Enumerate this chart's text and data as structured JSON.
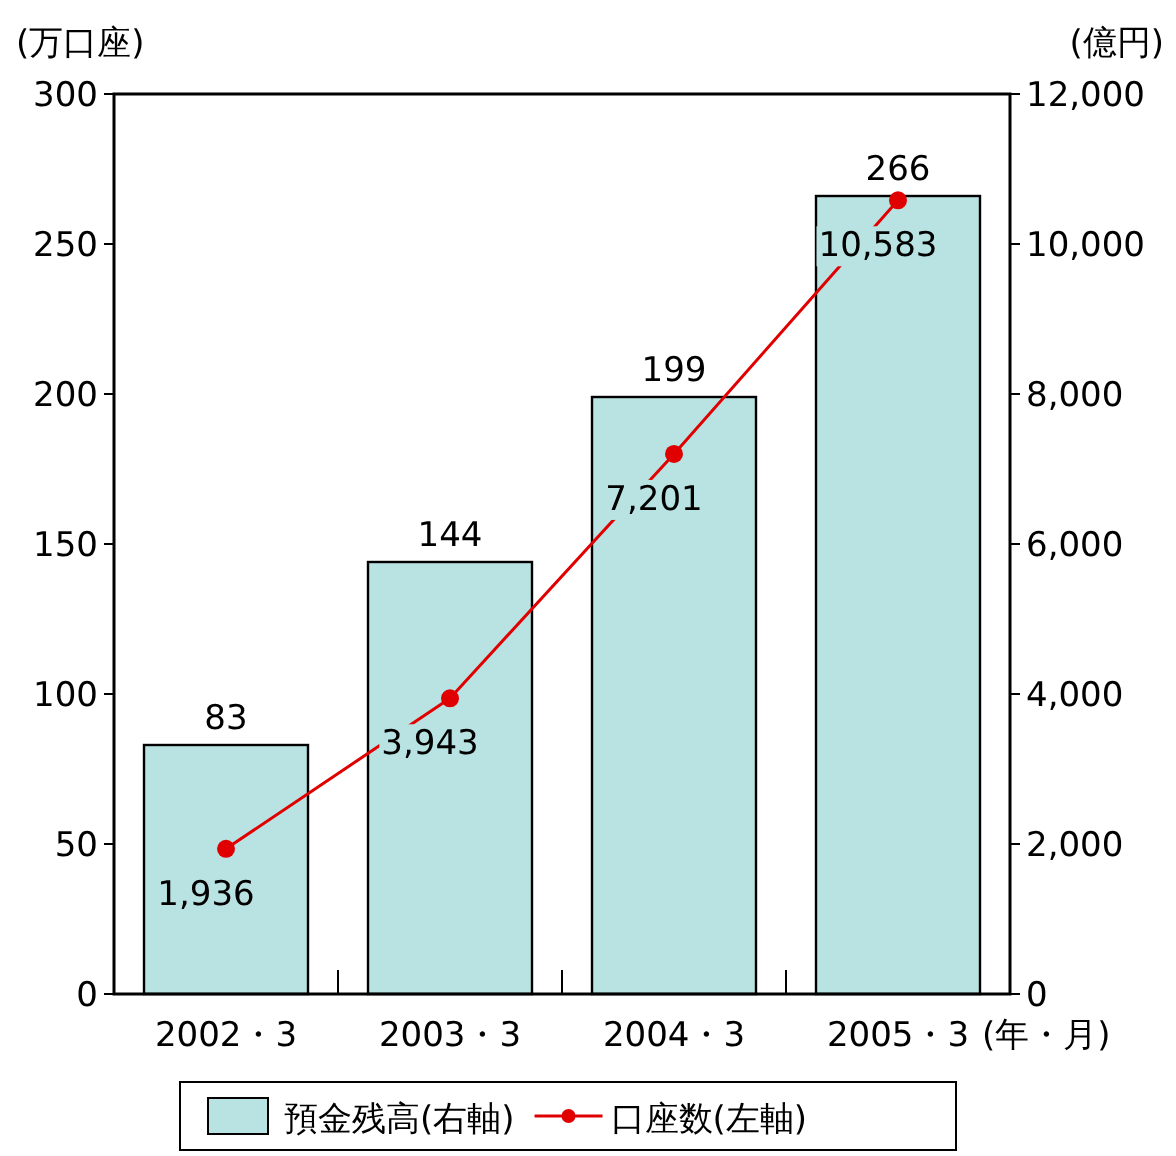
{
  "chart_data": {
    "type": "bar",
    "categories": [
      "2002・3",
      "2003・3",
      "2004・3",
      "2005・3"
    ],
    "xlabel": "(年・月)",
    "ylabel": "(万口座)",
    "y2label": "(億円)",
    "series": [
      {
        "name": "預金残高(右軸)",
        "axis": "y",
        "color": "#b9e3e3",
        "values": [
          83,
          144,
          199,
          266
        ],
        "value_labels": [
          "83",
          "144",
          "199",
          "266"
        ]
      },
      {
        "name": "口座数(左軸)",
        "type": "line",
        "axis": "y2",
        "color": "#e00000",
        "marker": "circle",
        "values": [
          1936,
          3943,
          7201,
          10583
        ],
        "value_labels": [
          "1,936",
          "3,943",
          "7,201",
          "10,583"
        ]
      }
    ],
    "ylim": [
      0,
      300
    ],
    "yticks": [
      0,
      50,
      100,
      150,
      200,
      250,
      300
    ],
    "y2lim": [
      0,
      12000
    ],
    "y2ticks": [
      0,
      {
        "value": 2000,
        "label": "2,000"
      },
      {
        "value": 4000,
        "label": "4,000"
      },
      {
        "value": 6000,
        "label": "6,000"
      },
      {
        "value": 8000,
        "label": "8,000"
      },
      {
        "value": 10000,
        "label": "10,000"
      },
      {
        "value": 12000,
        "label": "12,000"
      }
    ],
    "grid": false,
    "legend": "bottom"
  }
}
